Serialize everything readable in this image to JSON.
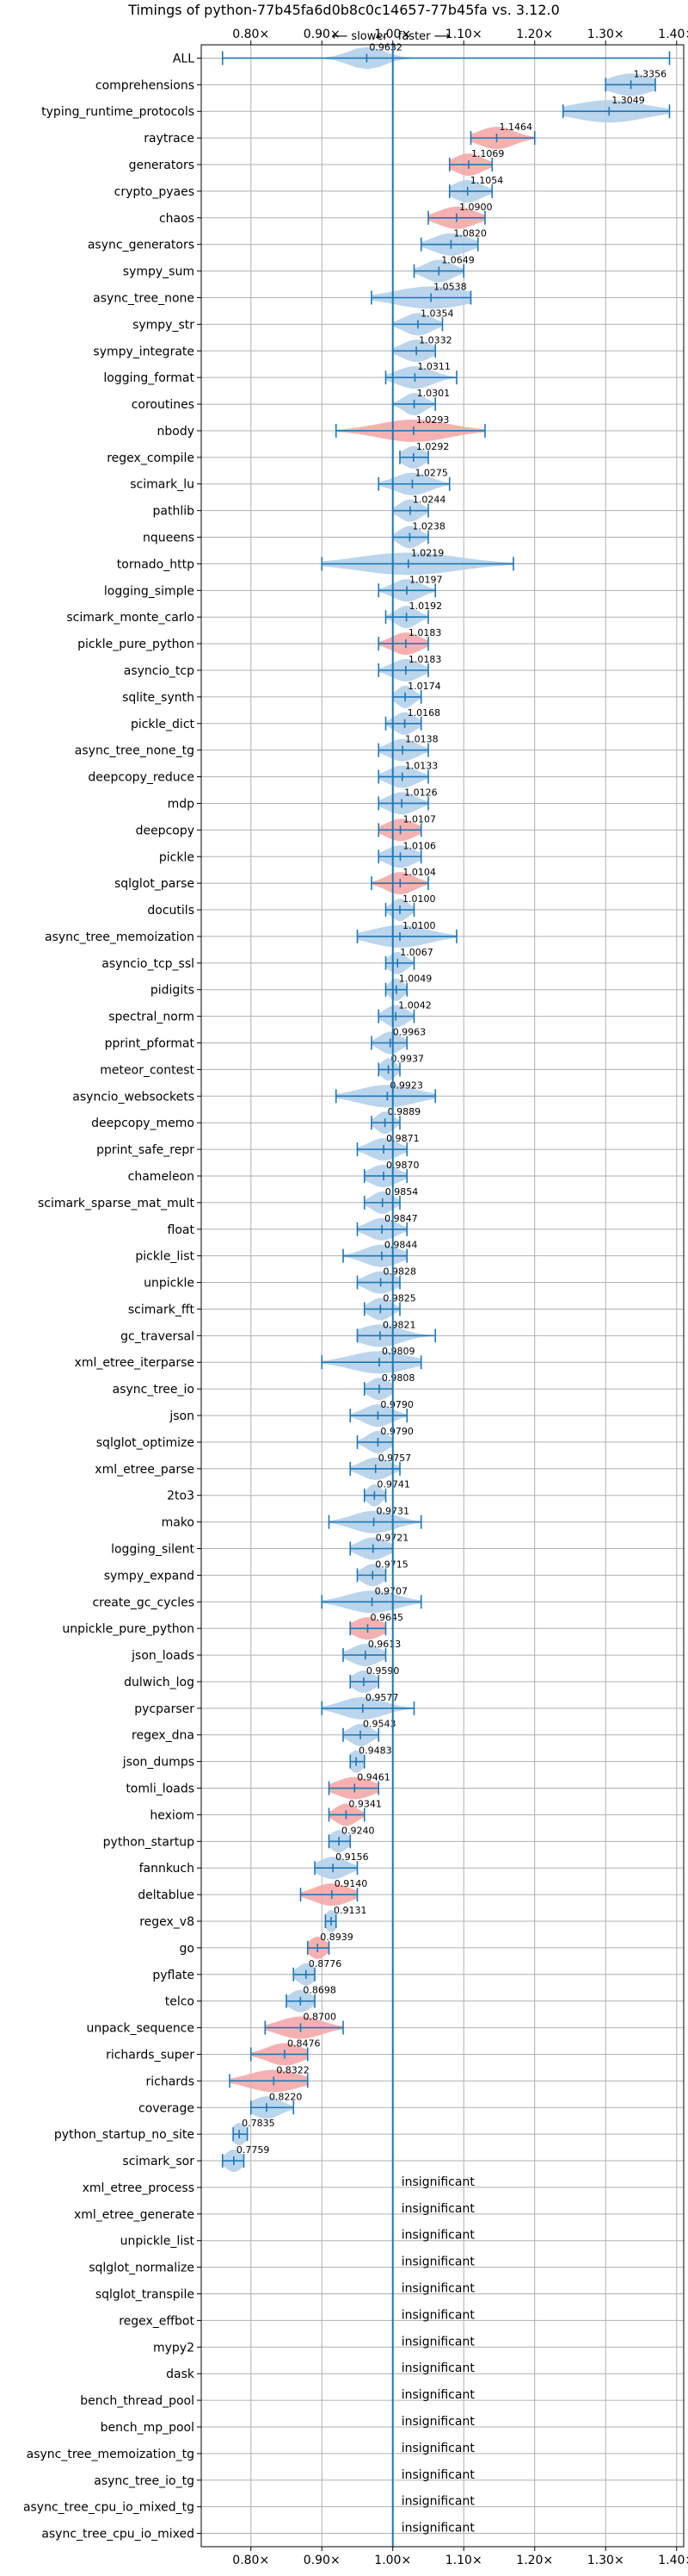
{
  "chart_data": {
    "type": "violin",
    "title": "Timings of python-77b45fa6d0b8c0c14657-77b45fa vs. 3.12.0",
    "direction_labels": {
      "slower": "⟵ slower",
      "faster": "faster ⟶"
    },
    "xlim": [
      0.73,
      1.41
    ],
    "x_ticks": [
      0.8,
      0.9,
      1.0,
      1.1,
      1.2,
      1.3,
      1.4
    ],
    "x_tick_labels": [
      "0.80×",
      "0.90×",
      "1.00×",
      "1.10×",
      "1.20×",
      "1.30×",
      "1.40×"
    ],
    "grid": true,
    "colors": {
      "faster": "#b3d0ea",
      "slower": "#f4a9a9",
      "whisker": "#1f77b4",
      "reference_line": "#1f77b4"
    },
    "insignificant_label": "insignificant",
    "benchmarks": [
      {
        "name": "ALL",
        "value": 0.9632,
        "label": "0.9632",
        "lo": 0.76,
        "hi": 1.39,
        "spread": 0.025,
        "color": "faster"
      },
      {
        "name": "comprehensions",
        "value": 1.3356,
        "label": "1.3356",
        "lo": 1.3,
        "hi": 1.37,
        "spread": 0.03,
        "color": "faster"
      },
      {
        "name": "typing_runtime_protocols",
        "value": 1.3049,
        "label": "1.3049",
        "lo": 1.24,
        "hi": 1.39,
        "spread": 0.05,
        "color": "faster"
      },
      {
        "name": "raytrace",
        "value": 1.1464,
        "label": "1.1464",
        "lo": 1.11,
        "hi": 1.2,
        "spread": 0.025,
        "color": "slower"
      },
      {
        "name": "generators",
        "value": 1.1069,
        "label": "1.1069",
        "lo": 1.08,
        "hi": 1.14,
        "spread": 0.02,
        "color": "slower"
      },
      {
        "name": "crypto_pyaes",
        "value": 1.1054,
        "label": "1.1054",
        "lo": 1.08,
        "hi": 1.14,
        "spread": 0.02,
        "color": "faster"
      },
      {
        "name": "chaos",
        "value": 1.09,
        "label": "1.0900",
        "lo": 1.05,
        "hi": 1.13,
        "spread": 0.025,
        "color": "slower"
      },
      {
        "name": "async_generators",
        "value": 1.082,
        "label": "1.0820",
        "lo": 1.04,
        "hi": 1.12,
        "spread": 0.025,
        "color": "faster"
      },
      {
        "name": "sympy_sum",
        "value": 1.0649,
        "label": "1.0649",
        "lo": 1.03,
        "hi": 1.1,
        "spread": 0.02,
        "color": "faster"
      },
      {
        "name": "async_tree_none",
        "value": 1.0538,
        "label": "1.0538",
        "lo": 0.97,
        "hi": 1.11,
        "spread": 0.05,
        "color": "faster"
      },
      {
        "name": "sympy_str",
        "value": 1.0354,
        "label": "1.0354",
        "lo": 1.0,
        "hi": 1.07,
        "spread": 0.02,
        "color": "faster"
      },
      {
        "name": "sympy_integrate",
        "value": 1.0332,
        "label": "1.0332",
        "lo": 1.0,
        "hi": 1.06,
        "spread": 0.02,
        "color": "faster"
      },
      {
        "name": "logging_format",
        "value": 1.0311,
        "label": "1.0311",
        "lo": 0.99,
        "hi": 1.09,
        "spread": 0.025,
        "color": "faster"
      },
      {
        "name": "coroutines",
        "value": 1.0301,
        "label": "1.0301",
        "lo": 1.0,
        "hi": 1.06,
        "spread": 0.015,
        "color": "faster"
      },
      {
        "name": "nbody",
        "value": 1.0293,
        "label": "1.0293",
        "lo": 0.92,
        "hi": 1.13,
        "spread": 0.05,
        "color": "slower"
      },
      {
        "name": "regex_compile",
        "value": 1.0292,
        "label": "1.0292",
        "lo": 1.01,
        "hi": 1.05,
        "spread": 0.015,
        "color": "faster"
      },
      {
        "name": "scimark_lu",
        "value": 1.0275,
        "label": "1.0275",
        "lo": 0.98,
        "hi": 1.08,
        "spread": 0.025,
        "color": "faster"
      },
      {
        "name": "pathlib",
        "value": 1.0244,
        "label": "1.0244",
        "lo": 1.0,
        "hi": 1.05,
        "spread": 0.015,
        "color": "faster"
      },
      {
        "name": "nqueens",
        "value": 1.0238,
        "label": "1.0238",
        "lo": 1.0,
        "hi": 1.05,
        "spread": 0.015,
        "color": "faster"
      },
      {
        "name": "tornado_http",
        "value": 1.0219,
        "label": "1.0219",
        "lo": 0.9,
        "hi": 1.17,
        "spread": 0.07,
        "color": "faster"
      },
      {
        "name": "logging_simple",
        "value": 1.0197,
        "label": "1.0197",
        "lo": 0.98,
        "hi": 1.06,
        "spread": 0.02,
        "color": "faster"
      },
      {
        "name": "scimark_monte_carlo",
        "value": 1.0192,
        "label": "1.0192",
        "lo": 0.99,
        "hi": 1.05,
        "spread": 0.015,
        "color": "faster"
      },
      {
        "name": "pickle_pure_python",
        "value": 1.0183,
        "label": "1.0183",
        "lo": 0.98,
        "hi": 1.05,
        "spread": 0.02,
        "color": "slower"
      },
      {
        "name": "asyncio_tcp",
        "value": 1.0183,
        "label": "1.0183",
        "lo": 0.98,
        "hi": 1.05,
        "spread": 0.02,
        "color": "faster"
      },
      {
        "name": "sqlite_synth",
        "value": 1.0174,
        "label": "1.0174",
        "lo": 1.0,
        "hi": 1.04,
        "spread": 0.012,
        "color": "faster"
      },
      {
        "name": "pickle_dict",
        "value": 1.0168,
        "label": "1.0168",
        "lo": 0.99,
        "hi": 1.04,
        "spread": 0.015,
        "color": "faster"
      },
      {
        "name": "async_tree_none_tg",
        "value": 1.0138,
        "label": "1.0138",
        "lo": 0.98,
        "hi": 1.05,
        "spread": 0.02,
        "color": "faster"
      },
      {
        "name": "deepcopy_reduce",
        "value": 1.0133,
        "label": "1.0133",
        "lo": 0.98,
        "hi": 1.05,
        "spread": 0.02,
        "color": "faster"
      },
      {
        "name": "mdp",
        "value": 1.0126,
        "label": "1.0126",
        "lo": 0.98,
        "hi": 1.05,
        "spread": 0.02,
        "color": "faster"
      },
      {
        "name": "deepcopy",
        "value": 1.0107,
        "label": "1.0107",
        "lo": 0.98,
        "hi": 1.04,
        "spread": 0.02,
        "color": "slower"
      },
      {
        "name": "pickle",
        "value": 1.0106,
        "label": "1.0106",
        "lo": 0.98,
        "hi": 1.04,
        "spread": 0.02,
        "color": "faster"
      },
      {
        "name": "sqlglot_parse",
        "value": 1.0104,
        "label": "1.0104",
        "lo": 0.97,
        "hi": 1.05,
        "spread": 0.02,
        "color": "slower"
      },
      {
        "name": "docutils",
        "value": 1.01,
        "label": "1.0100",
        "lo": 0.99,
        "hi": 1.03,
        "spread": 0.012,
        "color": "faster"
      },
      {
        "name": "async_tree_memoization",
        "value": 1.01,
        "label": "1.0100",
        "lo": 0.95,
        "hi": 1.09,
        "spread": 0.04,
        "color": "faster"
      },
      {
        "name": "asyncio_tcp_ssl",
        "value": 1.0067,
        "label": "1.0067",
        "lo": 0.99,
        "hi": 1.03,
        "spread": 0.012,
        "color": "faster"
      },
      {
        "name": "pidigits",
        "value": 1.0049,
        "label": "1.0049",
        "lo": 0.99,
        "hi": 1.02,
        "spread": 0.01,
        "color": "faster"
      },
      {
        "name": "spectral_norm",
        "value": 1.0042,
        "label": "1.0042",
        "lo": 0.98,
        "hi": 1.03,
        "spread": 0.015,
        "color": "faster"
      },
      {
        "name": "pprint_pformat",
        "value": 0.9963,
        "label": "0.9963",
        "lo": 0.97,
        "hi": 1.02,
        "spread": 0.015,
        "color": "faster"
      },
      {
        "name": "meteor_contest",
        "value": 0.9937,
        "label": "0.9937",
        "lo": 0.98,
        "hi": 1.01,
        "spread": 0.01,
        "color": "faster"
      },
      {
        "name": "asyncio_websockets",
        "value": 0.9923,
        "label": "0.9923",
        "lo": 0.92,
        "hi": 1.06,
        "spread": 0.04,
        "color": "faster"
      },
      {
        "name": "deepcopy_memo",
        "value": 0.9889,
        "label": "0.9889",
        "lo": 0.97,
        "hi": 1.01,
        "spread": 0.012,
        "color": "faster"
      },
      {
        "name": "pprint_safe_repr",
        "value": 0.9871,
        "label": "0.9871",
        "lo": 0.95,
        "hi": 1.02,
        "spread": 0.02,
        "color": "faster"
      },
      {
        "name": "chameleon",
        "value": 0.987,
        "label": "0.9870",
        "lo": 0.96,
        "hi": 1.02,
        "spread": 0.02,
        "color": "faster"
      },
      {
        "name": "scimark_sparse_mat_mult",
        "value": 0.9854,
        "label": "0.9854",
        "lo": 0.96,
        "hi": 1.01,
        "spread": 0.015,
        "color": "faster"
      },
      {
        "name": "float",
        "value": 0.9847,
        "label": "0.9847",
        "lo": 0.95,
        "hi": 1.02,
        "spread": 0.02,
        "color": "faster"
      },
      {
        "name": "pickle_list",
        "value": 0.9844,
        "label": "0.9844",
        "lo": 0.93,
        "hi": 1.02,
        "spread": 0.025,
        "color": "faster"
      },
      {
        "name": "unpickle",
        "value": 0.9828,
        "label": "0.9828",
        "lo": 0.95,
        "hi": 1.01,
        "spread": 0.02,
        "color": "faster"
      },
      {
        "name": "scimark_fft",
        "value": 0.9825,
        "label": "0.9825",
        "lo": 0.96,
        "hi": 1.01,
        "spread": 0.015,
        "color": "faster"
      },
      {
        "name": "gc_traversal",
        "value": 0.9821,
        "label": "0.9821",
        "lo": 0.95,
        "hi": 1.06,
        "spread": 0.03,
        "color": "faster"
      },
      {
        "name": "xml_etree_iterparse",
        "value": 0.9809,
        "label": "0.9809",
        "lo": 0.9,
        "hi": 1.04,
        "spread": 0.04,
        "color": "faster"
      },
      {
        "name": "async_tree_io",
        "value": 0.9808,
        "label": "0.9808",
        "lo": 0.96,
        "hi": 1.0,
        "spread": 0.015,
        "color": "faster"
      },
      {
        "name": "json",
        "value": 0.979,
        "label": "0.9790",
        "lo": 0.94,
        "hi": 1.02,
        "spread": 0.02,
        "color": "faster"
      },
      {
        "name": "sqlglot_optimize",
        "value": 0.979,
        "label": "0.9790",
        "lo": 0.95,
        "hi": 1.0,
        "spread": 0.015,
        "color": "faster"
      },
      {
        "name": "xml_etree_parse",
        "value": 0.9757,
        "label": "0.9757",
        "lo": 0.94,
        "hi": 1.01,
        "spread": 0.02,
        "color": "faster"
      },
      {
        "name": "2to3",
        "value": 0.9741,
        "label": "0.9741",
        "lo": 0.96,
        "hi": 0.99,
        "spread": 0.01,
        "color": "faster"
      },
      {
        "name": "mako",
        "value": 0.9731,
        "label": "0.9731",
        "lo": 0.91,
        "hi": 1.04,
        "spread": 0.03,
        "color": "faster"
      },
      {
        "name": "logging_silent",
        "value": 0.9721,
        "label": "0.9721",
        "lo": 0.94,
        "hi": 1.0,
        "spread": 0.02,
        "color": "faster"
      },
      {
        "name": "sympy_expand",
        "value": 0.9715,
        "label": "0.9715",
        "lo": 0.95,
        "hi": 0.99,
        "spread": 0.015,
        "color": "faster"
      },
      {
        "name": "create_gc_cycles",
        "value": 0.9707,
        "label": "0.9707",
        "lo": 0.9,
        "hi": 1.04,
        "spread": 0.035,
        "color": "faster"
      },
      {
        "name": "unpickle_pure_python",
        "value": 0.9645,
        "label": "0.9645",
        "lo": 0.94,
        "hi": 0.99,
        "spread": 0.02,
        "color": "slower"
      },
      {
        "name": "json_loads",
        "value": 0.9613,
        "label": "0.9613",
        "lo": 0.93,
        "hi": 0.99,
        "spread": 0.02,
        "color": "faster"
      },
      {
        "name": "dulwich_log",
        "value": 0.959,
        "label": "0.9590",
        "lo": 0.94,
        "hi": 0.98,
        "spread": 0.015,
        "color": "faster"
      },
      {
        "name": "pycparser",
        "value": 0.9577,
        "label": "0.9577",
        "lo": 0.9,
        "hi": 1.03,
        "spread": 0.03,
        "color": "faster"
      },
      {
        "name": "regex_dna",
        "value": 0.9543,
        "label": "0.9543",
        "lo": 0.93,
        "hi": 0.98,
        "spread": 0.015,
        "color": "faster"
      },
      {
        "name": "json_dumps",
        "value": 0.9483,
        "label": "0.9483",
        "lo": 0.94,
        "hi": 0.96,
        "spread": 0.01,
        "color": "faster"
      },
      {
        "name": "tomli_loads",
        "value": 0.9461,
        "label": "0.9461",
        "lo": 0.91,
        "hi": 0.98,
        "spread": 0.025,
        "color": "slower"
      },
      {
        "name": "hexiom",
        "value": 0.9341,
        "label": "0.9341",
        "lo": 0.91,
        "hi": 0.96,
        "spread": 0.015,
        "color": "slower"
      },
      {
        "name": "python_startup",
        "value": 0.924,
        "label": "0.9240",
        "lo": 0.91,
        "hi": 0.94,
        "spread": 0.012,
        "color": "faster"
      },
      {
        "name": "fannkuch",
        "value": 0.9156,
        "label": "0.9156",
        "lo": 0.89,
        "hi": 0.95,
        "spread": 0.02,
        "color": "faster"
      },
      {
        "name": "deltablue",
        "value": 0.914,
        "label": "0.9140",
        "lo": 0.87,
        "hi": 0.95,
        "spread": 0.025,
        "color": "slower"
      },
      {
        "name": "regex_v8",
        "value": 0.9131,
        "label": "0.9131",
        "lo": 0.905,
        "hi": 0.92,
        "spread": 0.008,
        "color": "faster"
      },
      {
        "name": "go",
        "value": 0.8939,
        "label": "0.8939",
        "lo": 0.88,
        "hi": 0.91,
        "spread": 0.012,
        "color": "slower"
      },
      {
        "name": "pyflate",
        "value": 0.8776,
        "label": "0.8776",
        "lo": 0.86,
        "hi": 0.89,
        "spread": 0.012,
        "color": "faster"
      },
      {
        "name": "telco",
        "value": 0.8698,
        "label": "0.8698",
        "lo": 0.85,
        "hi": 0.89,
        "spread": 0.015,
        "color": "faster"
      },
      {
        "name": "unpack_sequence",
        "value": 0.87,
        "label": "0.8700",
        "lo": 0.82,
        "hi": 0.93,
        "spread": 0.03,
        "color": "slower"
      },
      {
        "name": "richards_super",
        "value": 0.8476,
        "label": "0.8476",
        "lo": 0.8,
        "hi": 0.88,
        "spread": 0.025,
        "color": "slower"
      },
      {
        "name": "richards",
        "value": 0.8322,
        "label": "0.8322",
        "lo": 0.77,
        "hi": 0.88,
        "spread": 0.035,
        "color": "slower"
      },
      {
        "name": "coverage",
        "value": 0.822,
        "label": "0.8220",
        "lo": 0.8,
        "hi": 0.86,
        "spread": 0.02,
        "color": "faster"
      },
      {
        "name": "python_startup_no_site",
        "value": 0.7835,
        "label": "0.7835",
        "lo": 0.775,
        "hi": 0.795,
        "spread": 0.01,
        "color": "faster"
      },
      {
        "name": "scimark_sor",
        "value": 0.7759,
        "label": "0.7759",
        "lo": 0.76,
        "hi": 0.79,
        "spread": 0.012,
        "color": "faster"
      },
      {
        "name": "xml_etree_process",
        "insignificant": true
      },
      {
        "name": "xml_etree_generate",
        "insignificant": true
      },
      {
        "name": "unpickle_list",
        "insignificant": true
      },
      {
        "name": "sqlglot_normalize",
        "insignificant": true
      },
      {
        "name": "sqlglot_transpile",
        "insignificant": true
      },
      {
        "name": "regex_effbot",
        "insignificant": true
      },
      {
        "name": "mypy2",
        "insignificant": true
      },
      {
        "name": "dask",
        "insignificant": true
      },
      {
        "name": "bench_thread_pool",
        "insignificant": true
      },
      {
        "name": "bench_mp_pool",
        "insignificant": true
      },
      {
        "name": "async_tree_memoization_tg",
        "insignificant": true
      },
      {
        "name": "async_tree_io_tg",
        "insignificant": true
      },
      {
        "name": "async_tree_cpu_io_mixed_tg",
        "insignificant": true
      },
      {
        "name": "async_tree_cpu_io_mixed",
        "insignificant": true
      }
    ]
  }
}
